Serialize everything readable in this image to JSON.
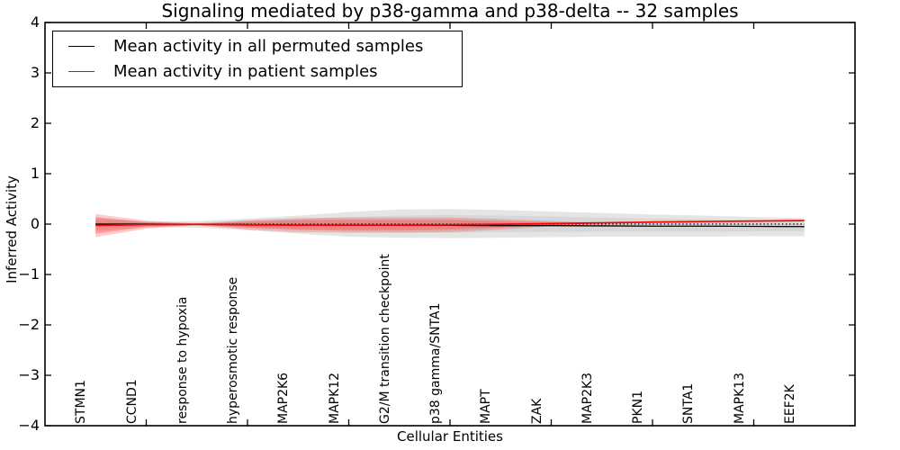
{
  "figure": {
    "title": "Signaling mediated by p38-gamma and p38-delta -- 32 samples",
    "xlabel": "Cellular Entities",
    "ylabel": "Inferred Activity"
  },
  "legend": {
    "position": "upper left",
    "items": [
      {
        "label": "Mean activity in all permuted samples",
        "color": "#000000"
      },
      {
        "label": "Mean activity in patient samples",
        "color": "#ff0000"
      }
    ]
  },
  "chart_data": {
    "type": "line",
    "title": "Signaling mediated by p38-gamma and p38-delta -- 32 samples",
    "xlabel": "Cellular Entities",
    "ylabel": "Inferred Activity",
    "ylim": [
      -4,
      4
    ],
    "grid": false,
    "legend_position": "upper left",
    "y_ticks": [
      "4",
      "3",
      "2",
      "1",
      "0",
      "−1",
      "−2",
      "−3",
      "−4"
    ],
    "y_tick_values": [
      4,
      3,
      2,
      1,
      0,
      -1,
      -2,
      -3,
      -4
    ],
    "x_major_tick_indices": [
      1,
      3,
      5,
      7,
      9,
      11,
      13
    ],
    "categories": [
      "STMN1",
      "CCND1",
      "response to hypoxia",
      "hyperosmotic response",
      "MAP2K6",
      "MAPK12",
      "G2/M transition checkpoint",
      "p38 gamma/SNTA1",
      "MAPT",
      "ZAK",
      "MAP2K3",
      "PKN1",
      "SNTA1",
      "MAPK13",
      "EEF2K"
    ],
    "series": [
      {
        "name": "Mean activity in all permuted samples",
        "color": "#000000",
        "width": 1.3,
        "values": [
          0.0,
          0.0,
          -0.005,
          -0.01,
          -0.02,
          -0.02,
          -0.02,
          -0.025,
          -0.03,
          -0.03,
          -0.035,
          -0.04,
          -0.04,
          -0.045,
          -0.05
        ]
      },
      {
        "name": "Mean activity in patient samples",
        "color": "#ff0000",
        "width": 1.7,
        "values": [
          -0.025,
          -0.01,
          -0.005,
          -0.015,
          -0.02,
          -0.02,
          -0.02,
          -0.015,
          -0.005,
          0.01,
          0.025,
          0.04,
          0.05,
          0.06,
          0.07
        ]
      }
    ],
    "bands": [
      {
        "name": "permuted-range-outer",
        "color": "rgba(0,0,0,0.10)",
        "upper": [
          0.12,
          0.05,
          0.06,
          0.11,
          0.17,
          0.24,
          0.29,
          0.3,
          0.28,
          0.25,
          0.22,
          0.19,
          0.17,
          0.14,
          0.12
        ],
        "lower": [
          -0.14,
          -0.06,
          -0.07,
          -0.12,
          -0.19,
          -0.25,
          -0.27,
          -0.28,
          -0.27,
          -0.26,
          -0.25,
          -0.25,
          -0.25,
          -0.24,
          -0.24
        ]
      },
      {
        "name": "permuted-range-inner",
        "color": "rgba(0,0,0,0.06)",
        "upper": [
          0.07,
          0.03,
          0.035,
          0.065,
          0.1,
          0.14,
          0.17,
          0.18,
          0.17,
          0.15,
          0.13,
          0.11,
          0.1,
          0.08,
          0.07
        ],
        "lower": [
          -0.08,
          -0.035,
          -0.04,
          -0.07,
          -0.11,
          -0.15,
          -0.16,
          -0.17,
          -0.16,
          -0.155,
          -0.15,
          -0.15,
          -0.15,
          -0.145,
          -0.145
        ]
      },
      {
        "name": "patient-range-outer",
        "color": "rgba(255,0,0,0.20)",
        "upper": [
          0.2,
          0.07,
          0.01,
          0.08,
          0.12,
          0.13,
          0.13,
          0.13,
          0.1,
          0.06,
          0.035,
          0.045,
          0.055,
          0.065,
          0.075
        ],
        "lower": [
          -0.26,
          -0.09,
          -0.02,
          -0.11,
          -0.16,
          -0.17,
          -0.17,
          -0.16,
          -0.11,
          -0.04,
          0.015,
          0.035,
          0.045,
          0.055,
          0.065
        ]
      },
      {
        "name": "patient-range-inner",
        "color": "rgba(255,0,0,0.22)",
        "upper": [
          0.14,
          0.04,
          0.0,
          0.05,
          0.08,
          0.085,
          0.085,
          0.085,
          0.06,
          0.035,
          0.03,
          0.042,
          0.052,
          0.062,
          0.072
        ],
        "lower": [
          -0.19,
          -0.06,
          -0.01,
          -0.07,
          -0.11,
          -0.12,
          -0.12,
          -0.11,
          -0.07,
          -0.02,
          0.02,
          0.038,
          0.048,
          0.058,
          0.068
        ]
      }
    ],
    "zero_line": {
      "value": 0,
      "style": "dotted",
      "color": "#000000"
    }
  }
}
